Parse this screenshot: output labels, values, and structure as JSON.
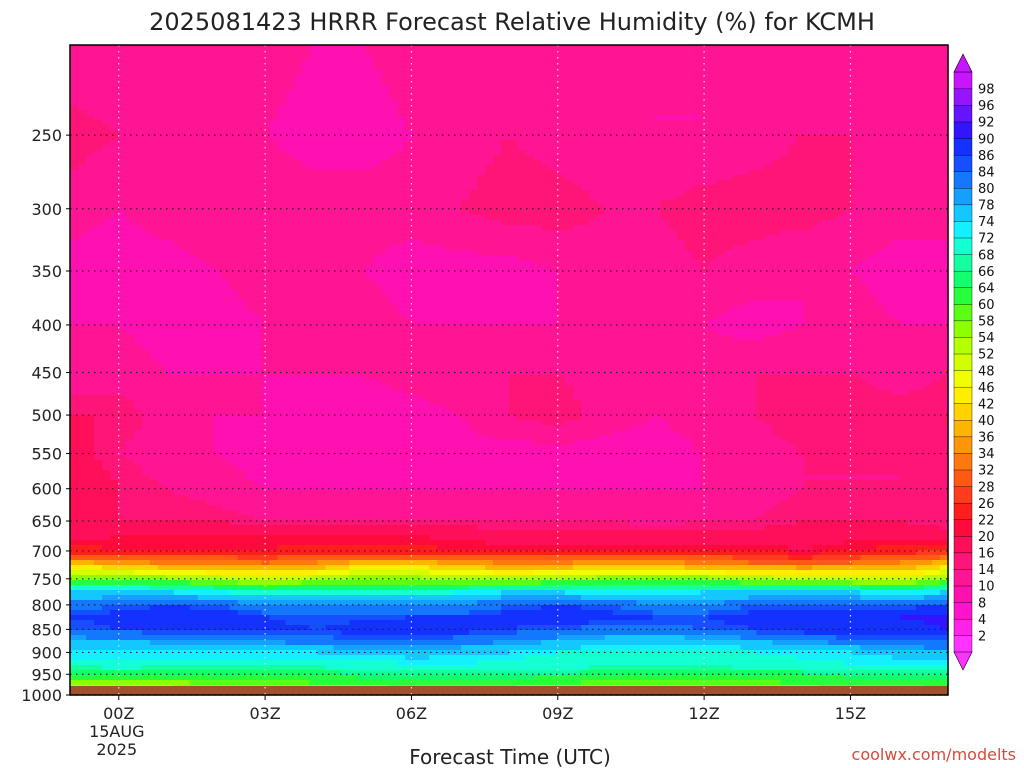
{
  "chart_data": {
    "type": "heatmap",
    "title": "2025081423 HRRR Forecast Relative Humidity (%) for KCMH",
    "xlabel": "Forecast Time (UTC)",
    "ylabel": "",
    "credit": "coolwx.com/modelts",
    "x_ticks": [
      {
        "hour": 0,
        "label": "00Z",
        "sub1": "15AUG",
        "sub2": "2025"
      },
      {
        "hour": 3,
        "label": "03Z"
      },
      {
        "hour": 6,
        "label": "06Z"
      },
      {
        "hour": 9,
        "label": "09Z"
      },
      {
        "hour": 12,
        "label": "12Z"
      },
      {
        "hour": 15,
        "label": "15Z"
      }
    ],
    "xlim": [
      -1,
      17
    ],
    "ylim": [
      1000,
      200
    ],
    "y_scale": "log",
    "y_ticks": [
      250,
      300,
      350,
      400,
      450,
      500,
      550,
      600,
      650,
      700,
      750,
      800,
      850,
      900,
      950,
      1000
    ],
    "grid": true,
    "colorbar_levels": [
      2,
      4,
      8,
      10,
      14,
      16,
      20,
      22,
      26,
      28,
      32,
      34,
      36,
      40,
      42,
      46,
      48,
      52,
      54,
      58,
      60,
      64,
      66,
      68,
      72,
      74,
      78,
      80,
      84,
      86,
      90,
      92,
      96,
      98
    ],
    "colorbar_colors": [
      "#ff33ff",
      "#ff22e8",
      "#ff14cc",
      "#ff10b0",
      "#ff1494",
      "#ff1478",
      "#ff0f5a",
      "#ff0a3c",
      "#ff1e1e",
      "#ff3c1e",
      "#ff5a14",
      "#ff780f",
      "#ff960a",
      "#ffb400",
      "#ffd200",
      "#ffee00",
      "#f0ff00",
      "#d2ff00",
      "#b4ff00",
      "#8cff00",
      "#5aff14",
      "#28ff3c",
      "#14ff6e",
      "#14ffa0",
      "#14ffd2",
      "#14f0ff",
      "#14c8ff",
      "#14a0ff",
      "#1478ff",
      "#1450ff",
      "#1432ff",
      "#3214ff",
      "#6414ff",
      "#9614ff",
      "#c814ff"
    ],
    "surface_pressure": 978,
    "pressure_levels": [
      1000,
      975,
      950,
      925,
      900,
      875,
      850,
      825,
      800,
      775,
      750,
      725,
      700,
      675,
      650,
      600,
      550,
      500,
      450,
      400,
      350,
      300,
      250,
      200
    ],
    "forecast_hours": [
      -1,
      0,
      1,
      2,
      3,
      4,
      5,
      6,
      7,
      8,
      9,
      10,
      11,
      12,
      13,
      14,
      15,
      16,
      17
    ],
    "rh_values": [
      [
        46,
        48,
        48,
        48,
        47,
        50,
        52,
        53,
        53,
        53,
        52,
        52,
        53,
        53,
        53,
        54,
        55,
        56,
        58
      ],
      [
        55,
        56,
        56,
        57,
        58,
        59,
        60,
        60,
        60,
        60,
        59,
        58,
        58,
        58,
        58,
        59,
        60,
        60,
        62
      ],
      [
        64,
        65,
        64,
        63,
        63,
        64,
        66,
        66,
        66,
        66,
        66,
        64,
        64,
        64,
        65,
        65,
        66,
        66,
        66
      ],
      [
        70,
        70,
        70,
        70,
        70,
        70,
        71,
        72,
        72,
        71,
        70,
        70,
        70,
        70,
        70,
        71,
        72,
        72,
        72
      ],
      [
        74,
        74,
        74,
        74,
        74,
        74,
        75,
        76,
        75,
        74,
        72,
        71,
        70,
        70,
        72,
        73,
        74,
        76,
        78
      ],
      [
        78,
        78,
        79,
        80,
        80,
        82,
        84,
        84,
        82,
        80,
        78,
        76,
        75,
        76,
        78,
        80,
        82,
        84,
        84
      ],
      [
        84,
        86,
        86,
        88,
        88,
        86,
        88,
        90,
        88,
        86,
        84,
        82,
        82,
        84,
        86,
        88,
        90,
        88,
        90
      ],
      [
        86,
        88,
        90,
        90,
        86,
        84,
        85,
        86,
        86,
        88,
        90,
        88,
        86,
        86,
        88,
        90,
        90,
        90,
        92
      ],
      [
        82,
        84,
        86,
        84,
        80,
        80,
        80,
        80,
        80,
        84,
        86,
        84,
        80,
        80,
        84,
        84,
        84,
        84,
        86
      ],
      [
        74,
        74,
        74,
        72,
        70,
        70,
        70,
        70,
        72,
        74,
        74,
        72,
        72,
        74,
        74,
        74,
        74,
        72,
        74
      ],
      [
        60,
        58,
        56,
        54,
        52,
        54,
        56,
        56,
        54,
        54,
        55,
        56,
        56,
        56,
        54,
        54,
        52,
        50,
        56
      ],
      [
        40,
        38,
        36,
        36,
        34,
        36,
        40,
        40,
        38,
        36,
        36,
        38,
        38,
        36,
        34,
        32,
        34,
        36,
        40
      ],
      [
        24,
        22,
        22,
        22,
        22,
        24,
        24,
        24,
        22,
        22,
        22,
        22,
        22,
        22,
        22,
        20,
        22,
        24,
        26
      ],
      [
        19,
        20,
        20,
        20,
        20,
        20,
        20,
        20,
        19,
        18,
        18,
        18,
        18,
        18,
        18,
        18,
        19,
        19,
        18
      ],
      [
        17,
        16,
        16,
        16,
        14,
        14,
        14,
        14,
        14,
        14,
        14,
        14,
        13,
        14,
        14,
        16,
        16,
        16,
        14
      ],
      [
        20,
        16,
        14,
        12,
        10,
        10,
        10,
        10,
        10,
        10,
        10,
        10,
        10,
        10,
        12,
        14,
        14,
        14,
        14
      ],
      [
        18,
        14,
        12,
        10,
        8,
        8,
        8,
        8,
        8,
        8,
        8,
        8,
        8,
        10,
        12,
        14,
        14,
        14,
        16
      ],
      [
        16,
        16,
        12,
        10,
        10,
        8,
        8,
        8,
        10,
        14,
        16,
        12,
        10,
        12,
        14,
        16,
        16,
        16,
        16
      ],
      [
        12,
        12,
        10,
        10,
        10,
        10,
        10,
        12,
        14,
        14,
        14,
        12,
        10,
        12,
        14,
        14,
        14,
        12,
        14
      ],
      [
        10,
        10,
        8,
        8,
        10,
        12,
        12,
        10,
        10,
        10,
        10,
        10,
        10,
        10,
        8,
        10,
        12,
        10,
        10
      ],
      [
        8,
        8,
        8,
        10,
        12,
        12,
        10,
        8,
        8,
        8,
        10,
        12,
        12,
        14,
        12,
        10,
        10,
        8,
        8
      ],
      [
        12,
        10,
        12,
        14,
        14,
        12,
        12,
        12,
        14,
        16,
        16,
        14,
        14,
        16,
        16,
        16,
        14,
        12,
        12
      ],
      [
        16,
        14,
        12,
        12,
        10,
        8,
        8,
        10,
        12,
        14,
        12,
        10,
        10,
        10,
        12,
        14,
        14,
        12,
        10
      ],
      [
        10,
        10,
        10,
        12,
        12,
        10,
        10,
        12,
        12,
        12,
        12,
        12,
        10,
        10,
        10,
        12,
        12,
        10,
        10
      ]
    ]
  }
}
